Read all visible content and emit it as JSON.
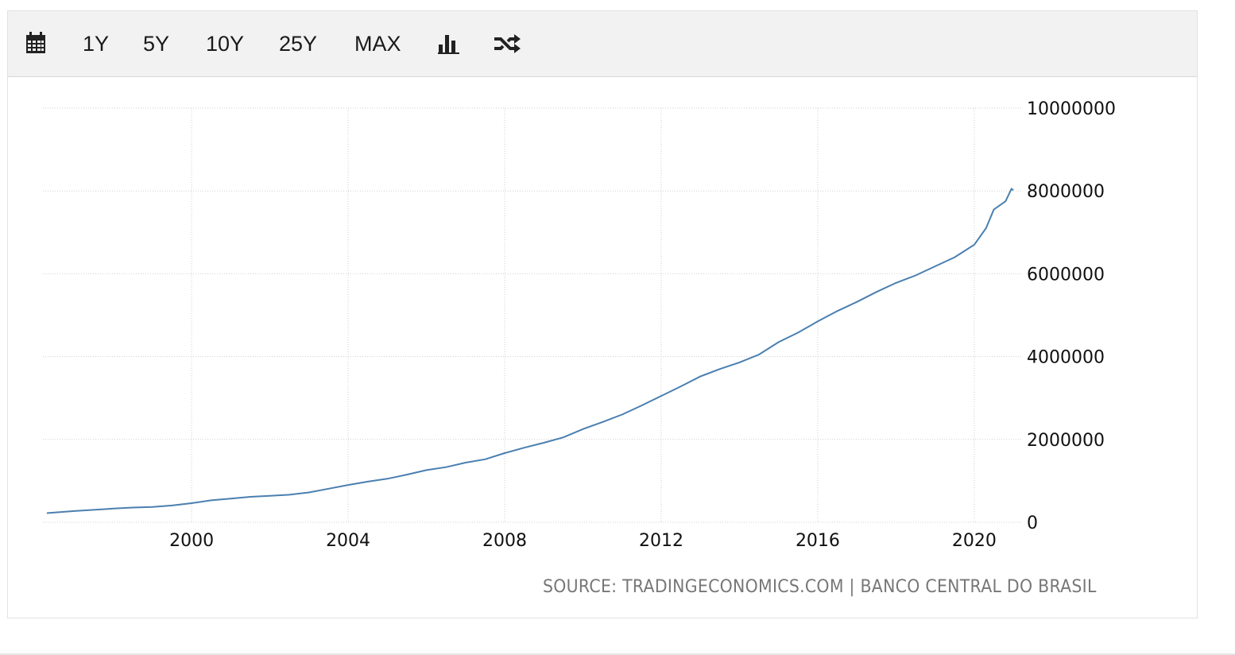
{
  "toolbar": {
    "calendar_icon": "calendar-icon",
    "ranges": [
      "1Y",
      "5Y",
      "10Y",
      "25Y",
      "MAX"
    ],
    "bar_chart_icon": "bar-chart-icon",
    "shuffle_icon": "shuffle-icon"
  },
  "source_text": "SOURCE: TRADINGECONOMICS.COM | BANCO CENTRAL DO BRASIL",
  "chart_data": {
    "type": "line",
    "title": "",
    "xlabel": "",
    "ylabel": "",
    "grid": true,
    "color": "#4a7fb0",
    "x_ticks": [
      "2000",
      "2004",
      "2008",
      "2012",
      "2016",
      "2020"
    ],
    "y_ticks": [
      "0",
      "2000000",
      "4000000",
      "6000000",
      "8000000",
      "10000000"
    ],
    "ylim": [
      0,
      10000000
    ],
    "xlim": [
      1996.2,
      2021.2
    ],
    "series": [
      {
        "x": [
          1996.3,
          1997.0,
          1997.5,
          1998.0,
          1998.5,
          1999.0,
          1999.5,
          2000.0,
          2000.5,
          2001.0,
          2001.5,
          2002.0,
          2002.5,
          2003.0,
          2003.5,
          2004.0,
          2004.5,
          2005.0,
          2005.5,
          2006.0,
          2006.5,
          2007.0,
          2007.5,
          2008.0,
          2008.5,
          2009.0,
          2009.5,
          2010.0,
          2010.5,
          2011.0,
          2011.5,
          2012.0,
          2012.5,
          2013.0,
          2013.5,
          2014.0,
          2014.5,
          2015.0,
          2015.5,
          2016.0,
          2016.5,
          2017.0,
          2017.5,
          2018.0,
          2018.5,
          2019.0,
          2019.5,
          2020.0,
          2020.3,
          2020.5,
          2020.8,
          2020.95,
          2021.0
        ],
        "values": [
          220000,
          270000,
          300000,
          330000,
          355000,
          370000,
          405000,
          460000,
          530000,
          570000,
          615000,
          640000,
          665000,
          720000,
          810000,
          900000,
          980000,
          1050000,
          1150000,
          1260000,
          1330000,
          1440000,
          1520000,
          1670000,
          1800000,
          1920000,
          2050000,
          2250000,
          2420000,
          2600000,
          2820000,
          3050000,
          3280000,
          3520000,
          3700000,
          3860000,
          4050000,
          4350000,
          4580000,
          4850000,
          5100000,
          5320000,
          5560000,
          5780000,
          5960000,
          6180000,
          6400000,
          6700000,
          7100000,
          7550000,
          7750000,
          8050000,
          8020000
        ]
      }
    ]
  }
}
